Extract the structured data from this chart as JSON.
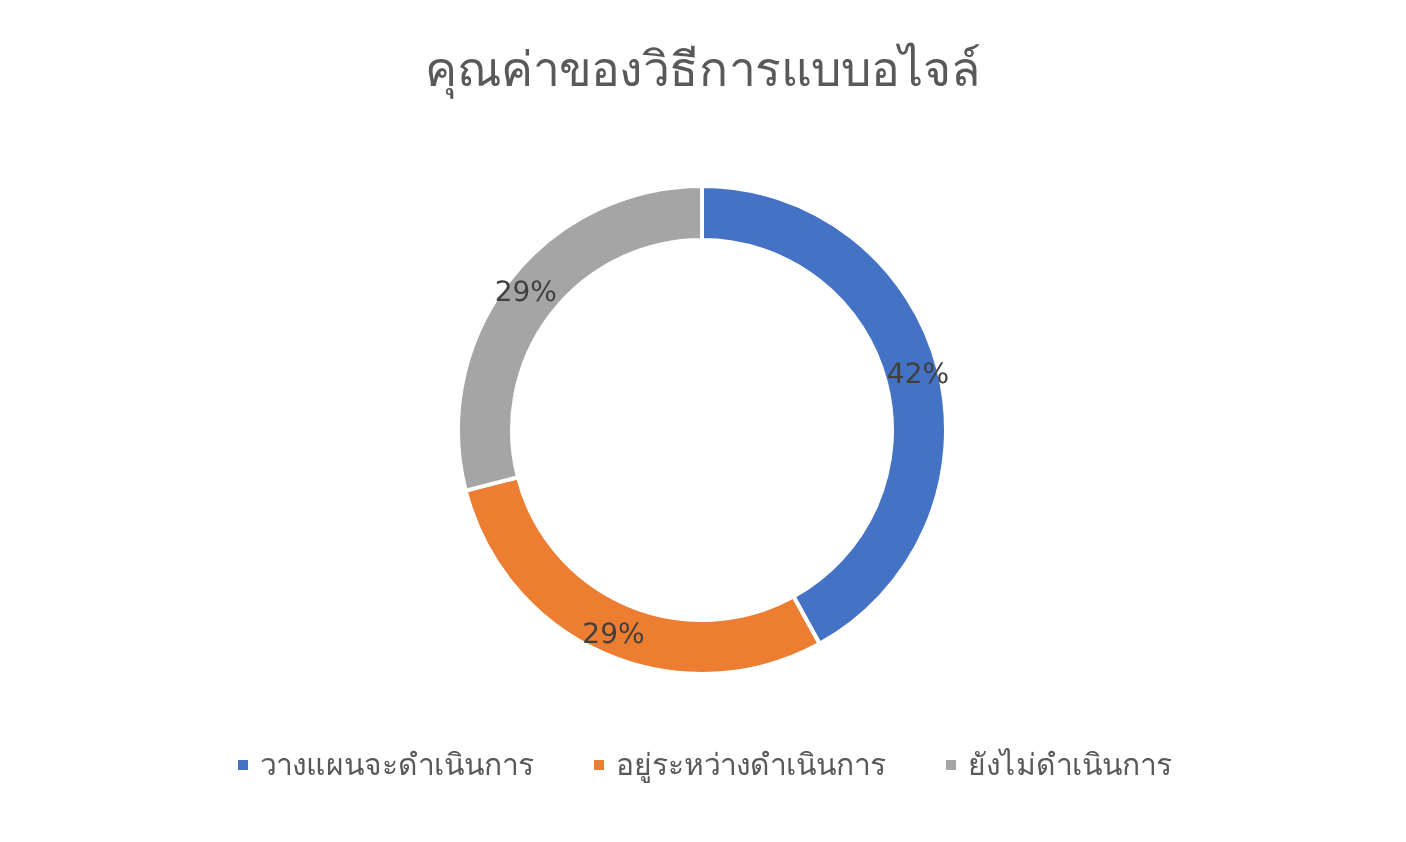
{
  "chart_data": {
    "type": "donut",
    "title": "คุณค่าของวิธีการแบบอไจล์",
    "categories": [
      "วางแผนจะดำเนินการ",
      "อยู่ระหว่างดำเนินการ",
      "ยังไม่ดำเนินการ"
    ],
    "values": [
      42,
      29,
      29
    ],
    "colors": [
      "#4472c4",
      "#ed7d31",
      "#a5a5a5"
    ],
    "value_labels": [
      "42%",
      "29%",
      "29%"
    ],
    "legend": "bottom"
  }
}
